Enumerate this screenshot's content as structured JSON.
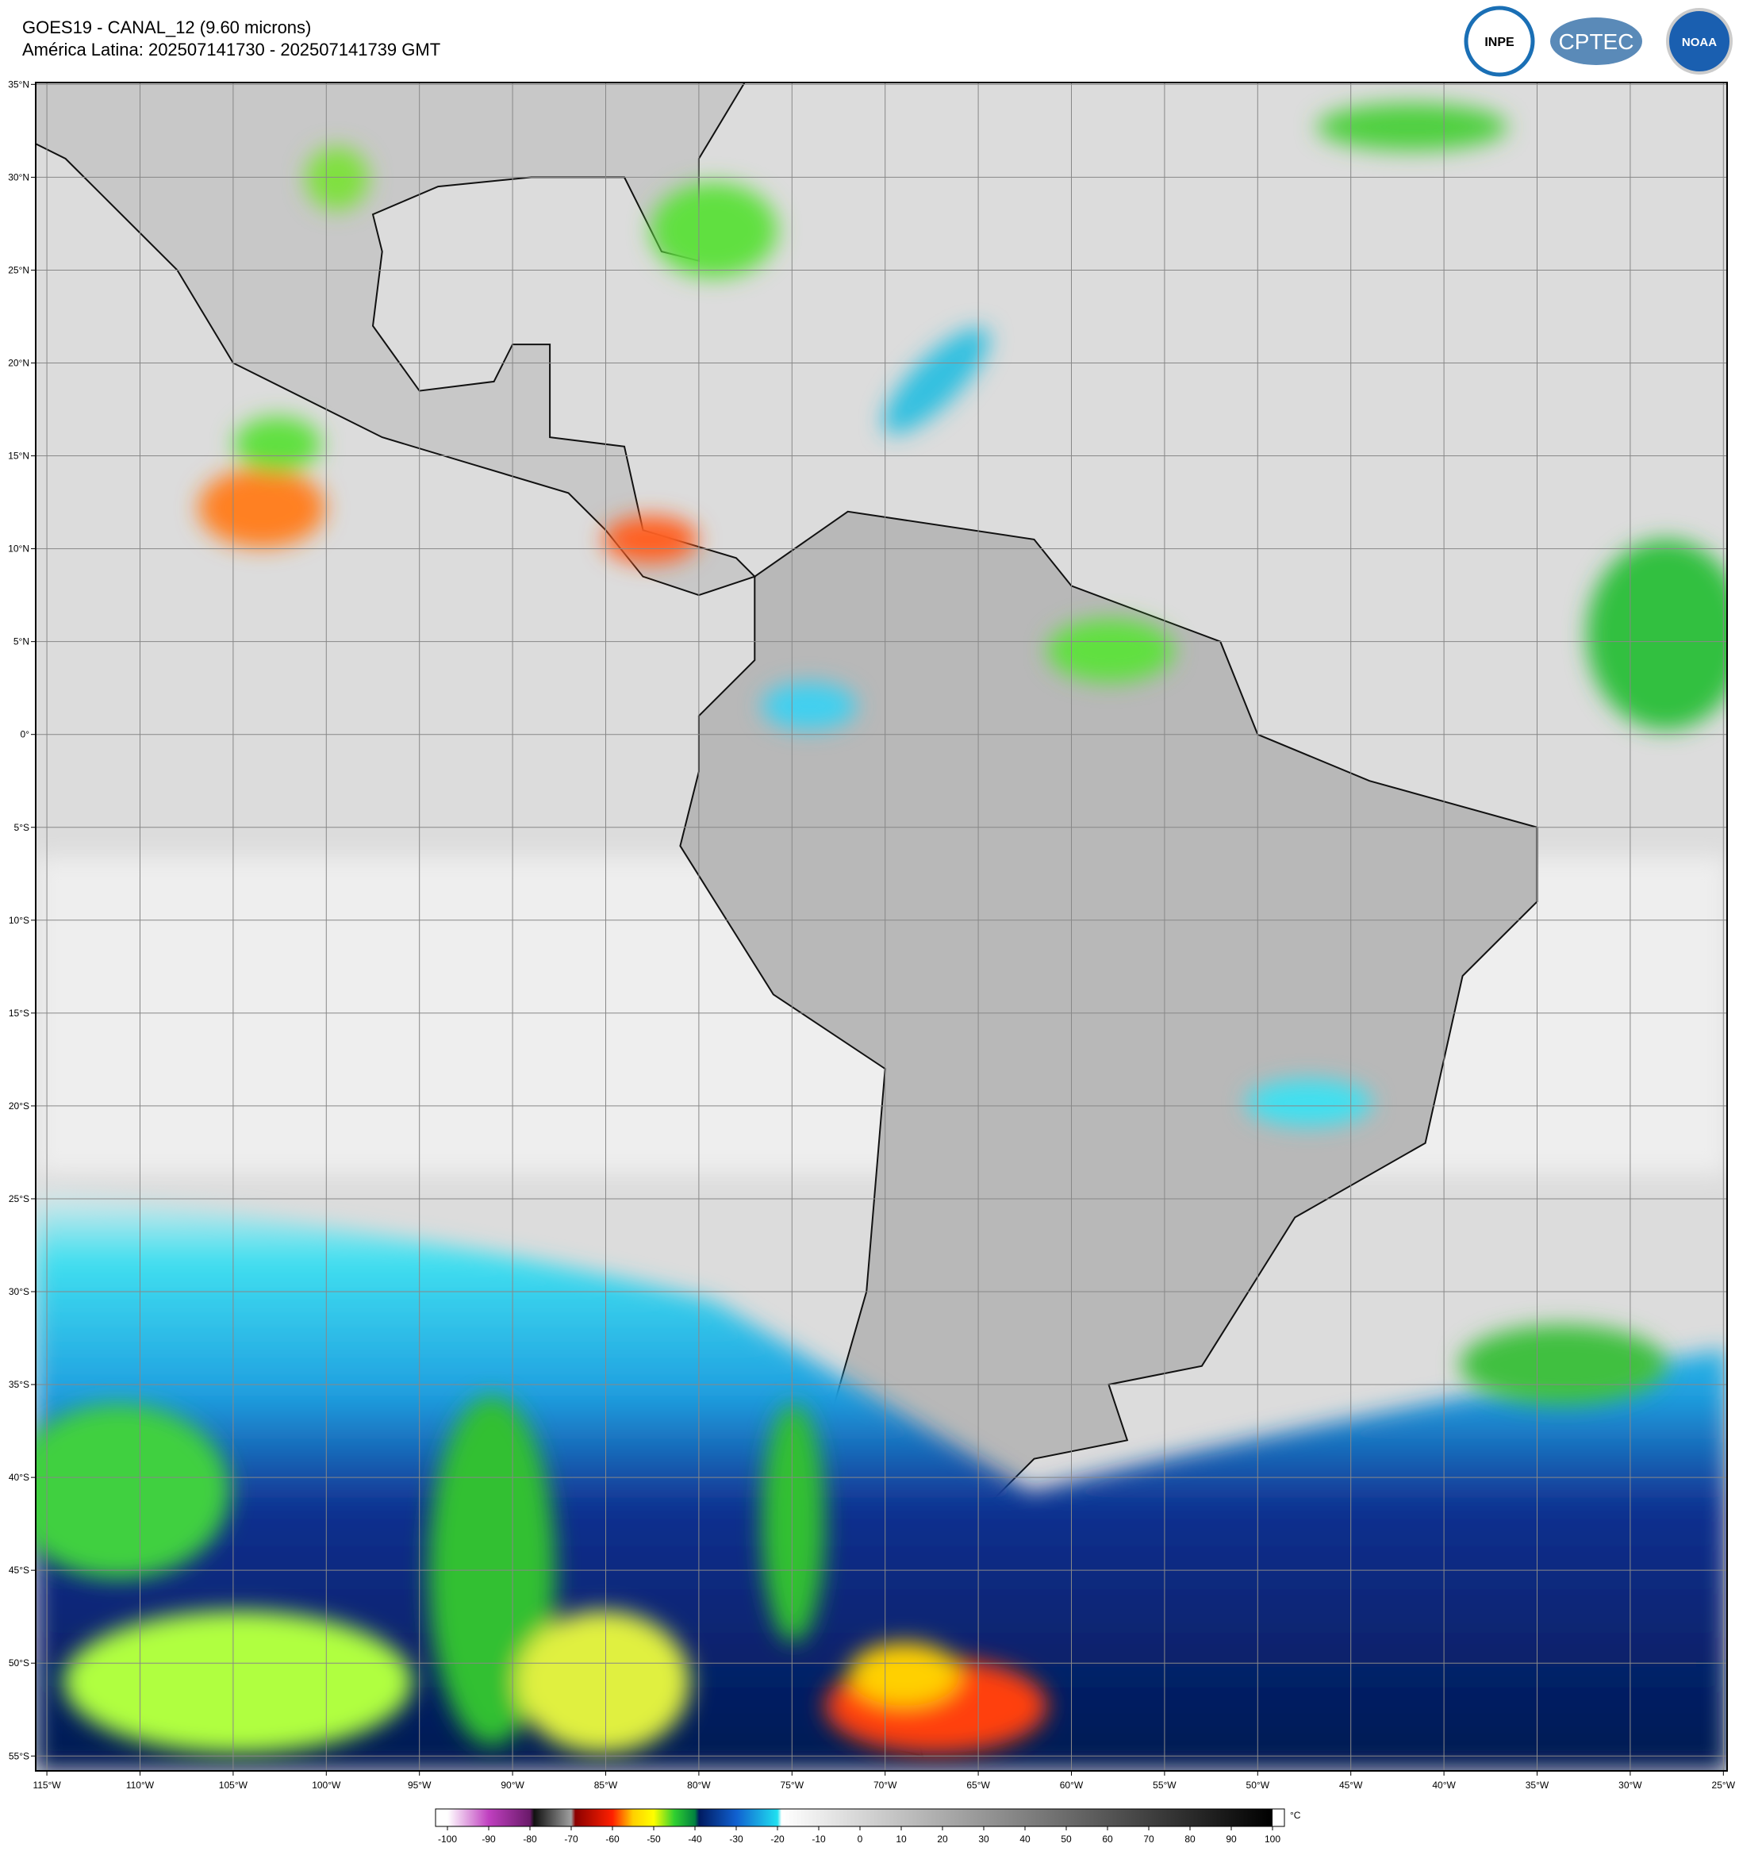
{
  "header": {
    "title": "GOES19 - CANAL_12 (9.60 microns)",
    "subtitle": "América Latina: 202507141730 - 202507141739 GMT"
  },
  "logos": [
    "INPE",
    "CPTEC",
    "NOAA"
  ],
  "map": {
    "type": "map",
    "xlim": [
      -115.6,
      -24.8
    ],
    "ylim": [
      -55.8,
      35.1
    ],
    "grid": true,
    "lon_ticks": [
      {
        "value": -115,
        "label": "115°W"
      },
      {
        "value": -110,
        "label": "110°W"
      },
      {
        "value": -105,
        "label": "105°W"
      },
      {
        "value": -100,
        "label": "100°W"
      },
      {
        "value": -95,
        "label": "95°W"
      },
      {
        "value": -90,
        "label": "90°W"
      },
      {
        "value": -85,
        "label": "85°W"
      },
      {
        "value": -80,
        "label": "80°W"
      },
      {
        "value": -75,
        "label": "75°W"
      },
      {
        "value": -70,
        "label": "70°W"
      },
      {
        "value": -65,
        "label": "65°W"
      },
      {
        "value": -60,
        "label": "60°W"
      },
      {
        "value": -55,
        "label": "55°W"
      },
      {
        "value": -50,
        "label": "50°W"
      },
      {
        "value": -45,
        "label": "45°W"
      },
      {
        "value": -40,
        "label": "40°W"
      },
      {
        "value": -35,
        "label": "35°W"
      },
      {
        "value": -30,
        "label": "30°W"
      },
      {
        "value": -25,
        "label": "25°W"
      }
    ],
    "lat_ticks": [
      {
        "value": 35,
        "label": "35°N"
      },
      {
        "value": 30,
        "label": "30°N"
      },
      {
        "value": 25,
        "label": "25°N"
      },
      {
        "value": 20,
        "label": "20°N"
      },
      {
        "value": 15,
        "label": "15°N"
      },
      {
        "value": 10,
        "label": "10°N"
      },
      {
        "value": 5,
        "label": "5°N"
      },
      {
        "value": 0,
        "label": "0°"
      },
      {
        "value": -5,
        "label": "5°S"
      },
      {
        "value": -10,
        "label": "10°S"
      },
      {
        "value": -15,
        "label": "15°S"
      },
      {
        "value": -20,
        "label": "20°S"
      },
      {
        "value": -25,
        "label": "25°S"
      },
      {
        "value": -30,
        "label": "30°S"
      },
      {
        "value": -35,
        "label": "35°S"
      },
      {
        "value": -40,
        "label": "40°S"
      },
      {
        "value": -45,
        "label": "45°S"
      },
      {
        "value": -50,
        "label": "50°S"
      },
      {
        "value": -55,
        "label": "55°S"
      }
    ]
  },
  "colorbar": {
    "unit": "°C",
    "ticks": [
      -100,
      -90,
      -80,
      -70,
      -60,
      -50,
      -40,
      -30,
      -20,
      -10,
      0,
      10,
      20,
      30,
      40,
      50,
      60,
      70,
      80,
      90,
      100
    ],
    "stops": [
      {
        "value": -100,
        "color": "#ffffff"
      },
      {
        "value": -90,
        "color": "#c040c0"
      },
      {
        "value": -80,
        "color": "#6a1a6a"
      },
      {
        "value": -79,
        "color": "#111111"
      },
      {
        "value": -70,
        "color": "#a0a0a0"
      },
      {
        "value": -69,
        "color": "#8b0000"
      },
      {
        "value": -60,
        "color": "#ff2000"
      },
      {
        "value": -55,
        "color": "#ffd000"
      },
      {
        "value": -50,
        "color": "#ffff00"
      },
      {
        "value": -45,
        "color": "#30d030"
      },
      {
        "value": -40,
        "color": "#008040"
      },
      {
        "value": -39,
        "color": "#001a60"
      },
      {
        "value": -30,
        "color": "#1060d0"
      },
      {
        "value": -20,
        "color": "#20e0f0"
      },
      {
        "value": -19,
        "color": "#ffffff"
      },
      {
        "value": 100,
        "color": "#000000"
      }
    ]
  }
}
